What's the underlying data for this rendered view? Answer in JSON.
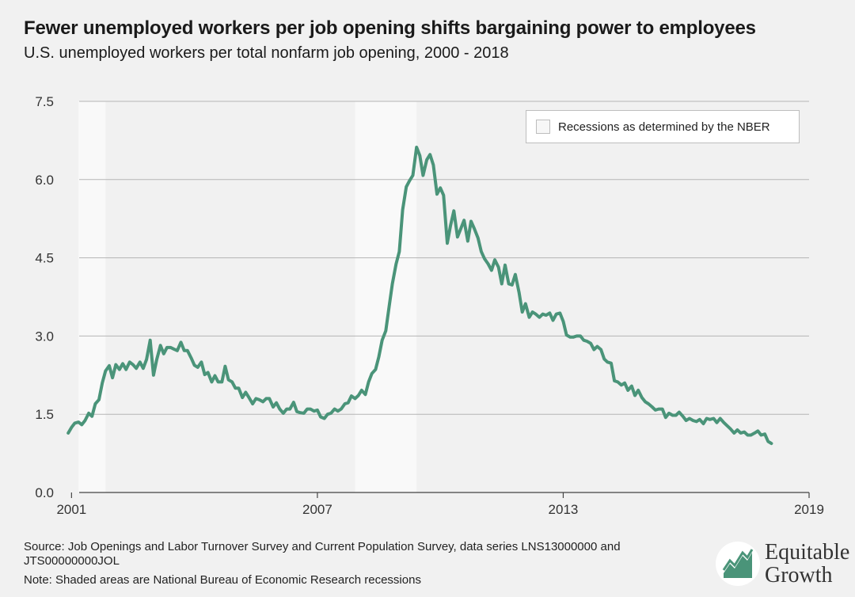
{
  "chart_data": {
    "type": "line",
    "title": "Fewer unemployed workers per job opening shifts bargaining power to employees",
    "subtitle": "U.S. unemployed workers per total nonfarm job opening, 2000 - 2018",
    "xlabel": "",
    "ylabel": "",
    "xlim": [
      2000.8,
      2019.0
    ],
    "ylim": [
      0,
      7.5
    ],
    "xticks": [
      "2001",
      "2007",
      "2013",
      "2019"
    ],
    "xtick_values": [
      2001,
      2007,
      2013,
      2019
    ],
    "yticks": [
      "0.0",
      "1.5",
      "3.0",
      "4.5",
      "6.0",
      "7.5"
    ],
    "ytick_values": [
      0,
      1.5,
      3.0,
      4.5,
      6.0,
      7.5
    ],
    "grid": "horizontal",
    "recessions": [
      [
        2001.17,
        2001.83
      ],
      [
        2007.92,
        2009.42
      ]
    ],
    "legend": {
      "position": "top-right",
      "label": "Recessions as determined by the NBER"
    },
    "series": [
      {
        "color": "#4a9479",
        "points": [
          [
            2000.92,
            1.14
          ],
          [
            2001.0,
            1.25
          ],
          [
            2001.08,
            1.33
          ],
          [
            2001.17,
            1.35
          ],
          [
            2001.25,
            1.3
          ],
          [
            2001.33,
            1.38
          ],
          [
            2001.42,
            1.52
          ],
          [
            2001.5,
            1.46
          ],
          [
            2001.58,
            1.7
          ],
          [
            2001.67,
            1.78
          ],
          [
            2001.75,
            2.1
          ],
          [
            2001.83,
            2.33
          ],
          [
            2001.92,
            2.43
          ],
          [
            2002.0,
            2.2
          ],
          [
            2002.08,
            2.45
          ],
          [
            2002.17,
            2.36
          ],
          [
            2002.25,
            2.47
          ],
          [
            2002.33,
            2.36
          ],
          [
            2002.42,
            2.5
          ],
          [
            2002.5,
            2.45
          ],
          [
            2002.58,
            2.38
          ],
          [
            2002.67,
            2.5
          ],
          [
            2002.75,
            2.38
          ],
          [
            2002.83,
            2.55
          ],
          [
            2002.92,
            2.92
          ],
          [
            2003.0,
            2.25
          ],
          [
            2003.08,
            2.55
          ],
          [
            2003.17,
            2.82
          ],
          [
            2003.25,
            2.66
          ],
          [
            2003.33,
            2.78
          ],
          [
            2003.42,
            2.78
          ],
          [
            2003.5,
            2.75
          ],
          [
            2003.58,
            2.72
          ],
          [
            2003.67,
            2.88
          ],
          [
            2003.75,
            2.72
          ],
          [
            2003.83,
            2.72
          ],
          [
            2003.92,
            2.58
          ],
          [
            2004.0,
            2.44
          ],
          [
            2004.08,
            2.4
          ],
          [
            2004.17,
            2.5
          ],
          [
            2004.25,
            2.26
          ],
          [
            2004.33,
            2.3
          ],
          [
            2004.42,
            2.12
          ],
          [
            2004.5,
            2.24
          ],
          [
            2004.58,
            2.12
          ],
          [
            2004.67,
            2.12
          ],
          [
            2004.75,
            2.42
          ],
          [
            2004.83,
            2.16
          ],
          [
            2004.92,
            2.12
          ],
          [
            2005.0,
            2.0
          ],
          [
            2005.08,
            2.0
          ],
          [
            2005.17,
            1.82
          ],
          [
            2005.25,
            1.92
          ],
          [
            2005.33,
            1.82
          ],
          [
            2005.42,
            1.7
          ],
          [
            2005.5,
            1.8
          ],
          [
            2005.58,
            1.78
          ],
          [
            2005.67,
            1.74
          ],
          [
            2005.75,
            1.8
          ],
          [
            2005.83,
            1.8
          ],
          [
            2005.92,
            1.64
          ],
          [
            2006.0,
            1.72
          ],
          [
            2006.08,
            1.6
          ],
          [
            2006.17,
            1.52
          ],
          [
            2006.25,
            1.6
          ],
          [
            2006.33,
            1.6
          ],
          [
            2006.42,
            1.73
          ],
          [
            2006.5,
            1.55
          ],
          [
            2006.58,
            1.53
          ],
          [
            2006.67,
            1.52
          ],
          [
            2006.75,
            1.6
          ],
          [
            2006.83,
            1.6
          ],
          [
            2006.92,
            1.56
          ],
          [
            2007.0,
            1.58
          ],
          [
            2007.08,
            1.45
          ],
          [
            2007.17,
            1.42
          ],
          [
            2007.25,
            1.5
          ],
          [
            2007.33,
            1.52
          ],
          [
            2007.42,
            1.6
          ],
          [
            2007.5,
            1.56
          ],
          [
            2007.58,
            1.6
          ],
          [
            2007.67,
            1.7
          ],
          [
            2007.75,
            1.72
          ],
          [
            2007.83,
            1.85
          ],
          [
            2007.92,
            1.8
          ],
          [
            2008.0,
            1.86
          ],
          [
            2008.08,
            1.96
          ],
          [
            2008.17,
            1.88
          ],
          [
            2008.25,
            2.12
          ],
          [
            2008.33,
            2.28
          ],
          [
            2008.42,
            2.36
          ],
          [
            2008.5,
            2.6
          ],
          [
            2008.58,
            2.92
          ],
          [
            2008.67,
            3.1
          ],
          [
            2008.75,
            3.56
          ],
          [
            2008.83,
            4.0
          ],
          [
            2008.92,
            4.38
          ],
          [
            2009.0,
            4.62
          ],
          [
            2009.08,
            5.42
          ],
          [
            2009.17,
            5.86
          ],
          [
            2009.25,
            5.98
          ],
          [
            2009.33,
            6.08
          ],
          [
            2009.42,
            6.62
          ],
          [
            2009.5,
            6.46
          ],
          [
            2009.58,
            6.08
          ],
          [
            2009.67,
            6.38
          ],
          [
            2009.75,
            6.48
          ],
          [
            2009.83,
            6.28
          ],
          [
            2009.92,
            5.72
          ],
          [
            2010.0,
            5.84
          ],
          [
            2010.08,
            5.7
          ],
          [
            2010.17,
            4.78
          ],
          [
            2010.25,
            5.12
          ],
          [
            2010.33,
            5.4
          ],
          [
            2010.42,
            4.9
          ],
          [
            2010.5,
            5.06
          ],
          [
            2010.58,
            5.22
          ],
          [
            2010.67,
            4.82
          ],
          [
            2010.75,
            5.2
          ],
          [
            2010.83,
            5.06
          ],
          [
            2010.92,
            4.88
          ],
          [
            2011.0,
            4.62
          ],
          [
            2011.08,
            4.48
          ],
          [
            2011.17,
            4.38
          ],
          [
            2011.25,
            4.26
          ],
          [
            2011.33,
            4.46
          ],
          [
            2011.42,
            4.32
          ],
          [
            2011.5,
            4.0
          ],
          [
            2011.58,
            4.36
          ],
          [
            2011.67,
            4.0
          ],
          [
            2011.75,
            3.98
          ],
          [
            2011.83,
            4.18
          ],
          [
            2011.92,
            3.84
          ],
          [
            2012.0,
            3.46
          ],
          [
            2012.08,
            3.62
          ],
          [
            2012.17,
            3.36
          ],
          [
            2012.25,
            3.46
          ],
          [
            2012.33,
            3.42
          ],
          [
            2012.42,
            3.36
          ],
          [
            2012.5,
            3.42
          ],
          [
            2012.58,
            3.4
          ],
          [
            2012.67,
            3.44
          ],
          [
            2012.75,
            3.3
          ],
          [
            2012.83,
            3.42
          ],
          [
            2012.92,
            3.44
          ],
          [
            2013.0,
            3.28
          ],
          [
            2013.08,
            3.02
          ],
          [
            2013.17,
            2.98
          ],
          [
            2013.25,
            2.98
          ],
          [
            2013.33,
            3.0
          ],
          [
            2013.42,
            3.0
          ],
          [
            2013.5,
            2.92
          ],
          [
            2013.58,
            2.9
          ],
          [
            2013.67,
            2.86
          ],
          [
            2013.75,
            2.74
          ],
          [
            2013.83,
            2.8
          ],
          [
            2013.92,
            2.74
          ],
          [
            2014.0,
            2.56
          ],
          [
            2014.08,
            2.5
          ],
          [
            2014.17,
            2.48
          ],
          [
            2014.25,
            2.14
          ],
          [
            2014.33,
            2.12
          ],
          [
            2014.42,
            2.06
          ],
          [
            2014.5,
            2.1
          ],
          [
            2014.58,
            1.96
          ],
          [
            2014.67,
            2.04
          ],
          [
            2014.75,
            1.86
          ],
          [
            2014.83,
            1.96
          ],
          [
            2014.92,
            1.82
          ],
          [
            2015.0,
            1.74
          ],
          [
            2015.08,
            1.7
          ],
          [
            2015.17,
            1.64
          ],
          [
            2015.25,
            1.58
          ],
          [
            2015.33,
            1.6
          ],
          [
            2015.42,
            1.6
          ],
          [
            2015.5,
            1.44
          ],
          [
            2015.58,
            1.52
          ],
          [
            2015.67,
            1.48
          ],
          [
            2015.75,
            1.48
          ],
          [
            2015.83,
            1.54
          ],
          [
            2015.92,
            1.46
          ],
          [
            2016.0,
            1.38
          ],
          [
            2016.08,
            1.42
          ],
          [
            2016.17,
            1.38
          ],
          [
            2016.25,
            1.36
          ],
          [
            2016.33,
            1.4
          ],
          [
            2016.42,
            1.32
          ],
          [
            2016.5,
            1.42
          ],
          [
            2016.58,
            1.4
          ],
          [
            2016.67,
            1.42
          ],
          [
            2016.75,
            1.34
          ],
          [
            2016.83,
            1.42
          ],
          [
            2016.92,
            1.34
          ],
          [
            2017.0,
            1.28
          ],
          [
            2017.08,
            1.22
          ],
          [
            2017.17,
            1.14
          ],
          [
            2017.25,
            1.2
          ],
          [
            2017.33,
            1.14
          ],
          [
            2017.42,
            1.16
          ],
          [
            2017.5,
            1.1
          ],
          [
            2017.58,
            1.1
          ],
          [
            2017.67,
            1.14
          ],
          [
            2017.75,
            1.18
          ],
          [
            2017.83,
            1.1
          ],
          [
            2017.92,
            1.12
          ],
          [
            2018.0,
            0.98
          ],
          [
            2018.08,
            0.94
          ]
        ]
      }
    ]
  },
  "footer": {
    "source": "Source: Job Openings and Labor Turnover Survey and Current Population Survey, data series LNS13000000 and JTS00000000JOL",
    "note": "Note: Shaded areas are National Bureau of Economic Research recessions"
  },
  "logo": {
    "line1": "Equitable",
    "line2": "Growth",
    "colors": {
      "mark": "#4a9479",
      "circle": "#ffffff"
    }
  }
}
